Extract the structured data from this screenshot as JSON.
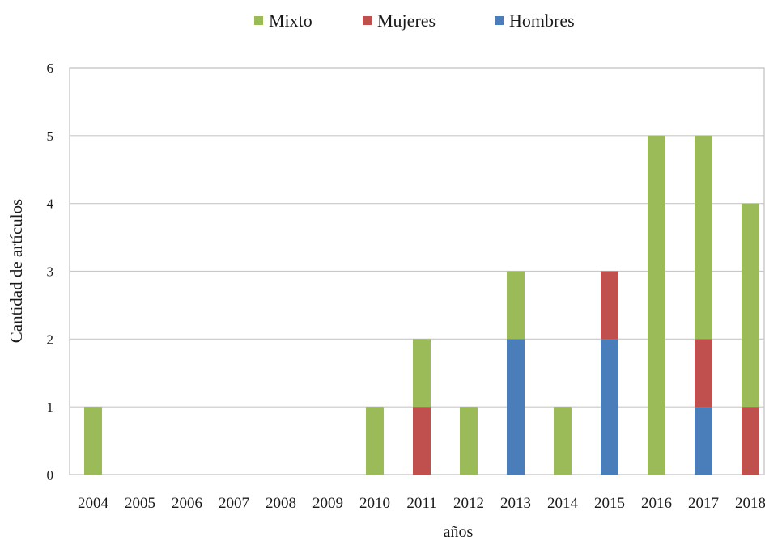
{
  "chart_data": {
    "type": "bar",
    "stacked": true,
    "title": "",
    "xlabel": "años",
    "ylabel": "Cantidad de artículos",
    "ylim": [
      0,
      6
    ],
    "yticks": [
      "0",
      "1",
      "2",
      "3",
      "4",
      "5",
      "6"
    ],
    "grid": true,
    "legend_position": "top-center",
    "categories": [
      "2004",
      "2005",
      "2006",
      "2007",
      "2008",
      "2009",
      "2010",
      "2011",
      "2012",
      "2013",
      "2014",
      "2015",
      "2016",
      "2017",
      "2018"
    ],
    "series": [
      {
        "name": "Hombres",
        "color": "#4a7ebb",
        "values": [
          0,
          0,
          0,
          0,
          0,
          0,
          0,
          0,
          0,
          2,
          0,
          2,
          0,
          1,
          0
        ]
      },
      {
        "name": "Mujeres",
        "color": "#c0504d",
        "values": [
          0,
          0,
          0,
          0,
          0,
          0,
          0,
          1,
          0,
          0,
          0,
          1,
          0,
          1,
          1
        ]
      },
      {
        "name": "Mixto",
        "color": "#9bbb59",
        "values": [
          1,
          0,
          0,
          0,
          0,
          0,
          1,
          1,
          1,
          1,
          1,
          0,
          5,
          3,
          3
        ]
      }
    ],
    "legend_order": [
      "Mixto",
      "Mujeres",
      "Hombres"
    ]
  }
}
